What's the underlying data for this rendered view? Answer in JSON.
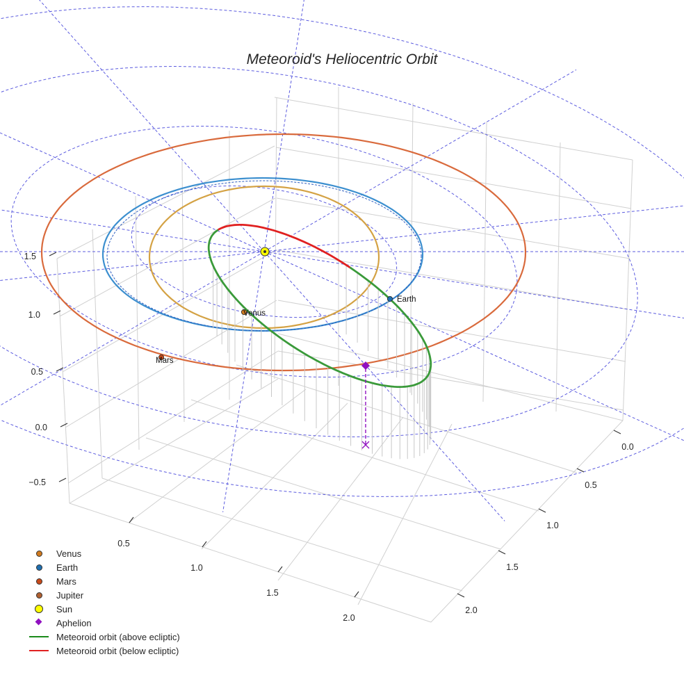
{
  "chart_data": {
    "type": "line",
    "title": "Meteoroid's Heliocentric Orbit",
    "projection": "3d",
    "z_axis": {
      "ticks": [
        "−0.5",
        "0.0",
        "0.5",
        "1.0",
        "1.5"
      ]
    },
    "x_axis": {
      "ticks": [
        "0.5",
        "1.0",
        "1.5",
        "2.0"
      ]
    },
    "y_axis": {
      "ticks": [
        "0.0",
        "0.5",
        "1.0",
        "1.5",
        "2.0"
      ]
    },
    "grid": true,
    "planet_orbits": [
      {
        "name": "Venus",
        "color": "#d4a244",
        "radius_au": 0.72
      },
      {
        "name": "Earth",
        "color": "#3c8fcf",
        "radius_au": 1.0
      },
      {
        "name": "Mars",
        "color": "#d96a3c",
        "radius_au": 1.52
      }
    ],
    "planet_labels": [
      "Venus",
      "Earth",
      "Mars"
    ],
    "meteoroid_orbit": {
      "above_color": "#3a9a3a",
      "below_color": "#e02020",
      "aphelion_color": "#9010c0"
    },
    "legend_position": "lower-left",
    "legend": [
      {
        "label": "Venus",
        "marker": "dot",
        "color": "#d07a1e"
      },
      {
        "label": "Earth",
        "marker": "dot",
        "color": "#1f6fb0"
      },
      {
        "label": "Mars",
        "marker": "dot",
        "color": "#c84a1a"
      },
      {
        "label": "Jupiter",
        "marker": "dot",
        "color": "#b06030"
      },
      {
        "label": "Sun",
        "marker": "sun",
        "color": "#ffff00"
      },
      {
        "label": "Aphelion",
        "marker": "diamond",
        "color": "#9010c0"
      },
      {
        "label": "Meteoroid orbit (above ecliptic)",
        "marker": "line",
        "color": "#1a8a1a"
      },
      {
        "label": "Meteoroid orbit (below ecliptic)",
        "marker": "line",
        "color": "#e02020"
      }
    ]
  }
}
